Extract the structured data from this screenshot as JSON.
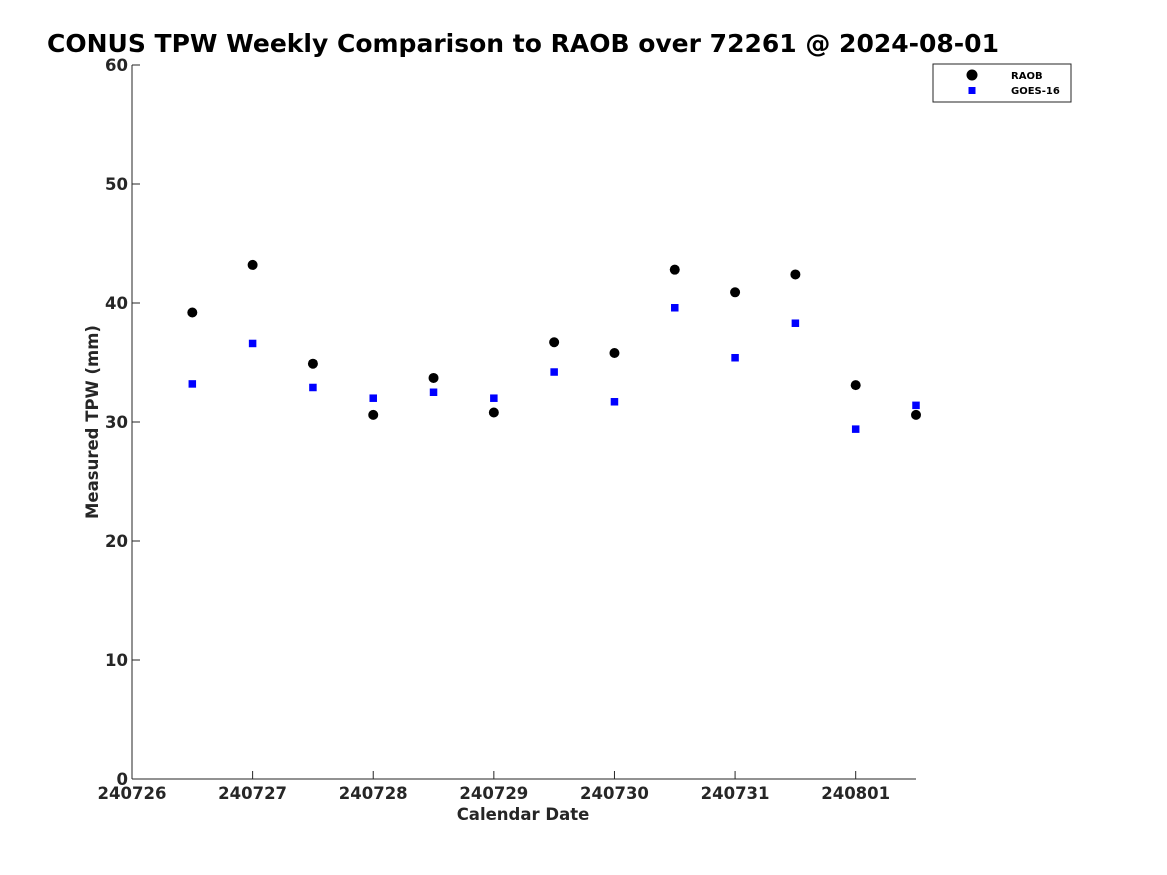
{
  "chart_data": {
    "type": "scatter",
    "title": "CONUS TPW Weekly Comparison to RAOB over 72261 @ 2024-08-01",
    "xlabel": "Calendar Date",
    "ylabel": "Measured TPW (mm)",
    "xlim": [
      "240726",
      "240801 12:00"
    ],
    "ylim": [
      0,
      60
    ],
    "x_ticks": [
      "240726",
      "240727",
      "240728",
      "240729",
      "240730",
      "240731",
      "240801"
    ],
    "y_ticks": [
      0,
      10,
      20,
      30,
      40,
      50,
      60
    ],
    "grid": false,
    "legend_position": "top-right",
    "x": [
      "240726 12:00",
      "240727 00:00",
      "240727 12:00",
      "240728 00:00",
      "240728 12:00",
      "240729 00:00",
      "240729 12:00",
      "240730 00:00",
      "240730 12:00",
      "240731 00:00",
      "240731 12:00",
      "240801 00:00",
      "240801 12:00"
    ],
    "series": [
      {
        "name": "RAOB",
        "marker": "circle",
        "color": "#000000",
        "values": [
          39.2,
          43.2,
          34.9,
          30.6,
          33.7,
          30.8,
          36.7,
          35.8,
          42.8,
          40.9,
          42.4,
          33.1,
          30.6
        ]
      },
      {
        "name": "GOES-16",
        "marker": "square",
        "color": "#0000ff",
        "values": [
          33.2,
          36.6,
          32.9,
          32.0,
          32.5,
          32.0,
          34.2,
          31.7,
          39.6,
          35.4,
          38.3,
          29.4,
          31.4
        ]
      }
    ]
  }
}
